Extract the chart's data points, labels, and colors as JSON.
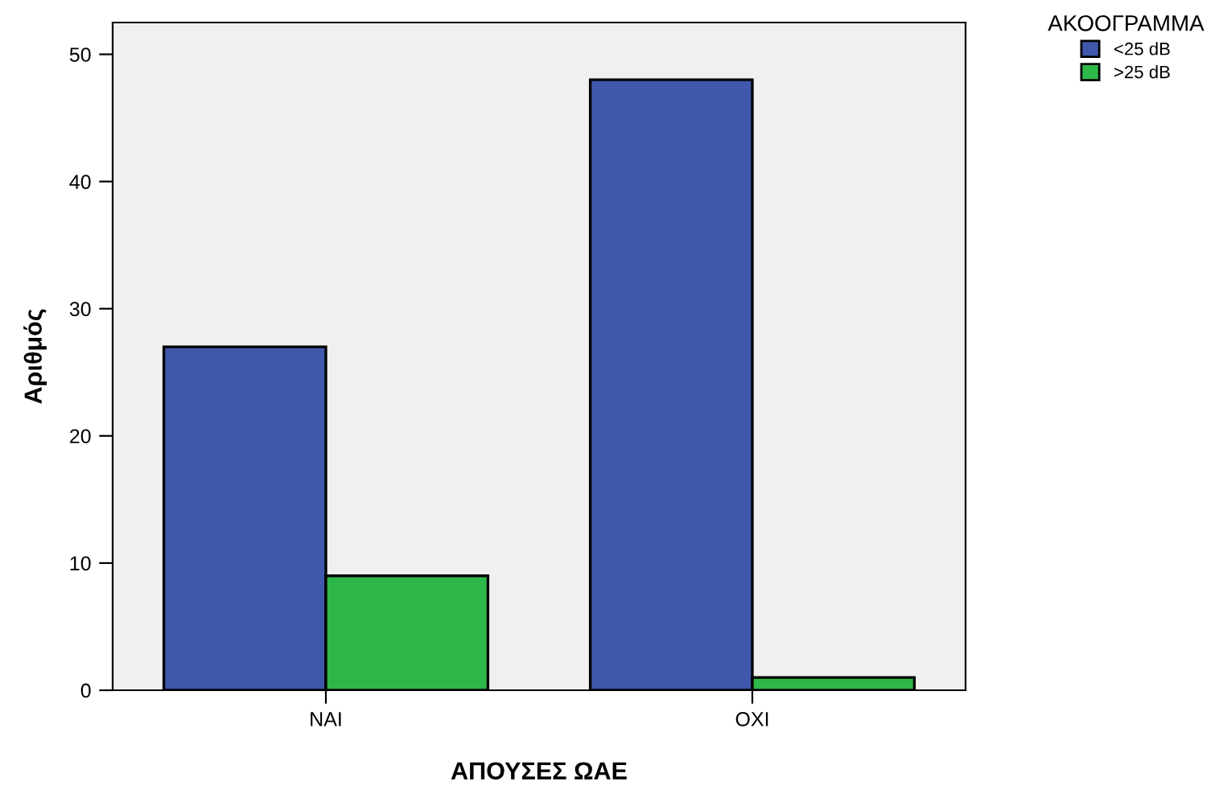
{
  "chart_data": {
    "type": "bar",
    "xlabel": "ΑΠΟΥΣΕΣ ΩΑΕ",
    "ylabel": "Αριθμός",
    "legend_title": "ΑΚΟΟΓΡΑΜΜΑ",
    "categories": [
      "ΝΑΙ",
      "ΟΧΙ"
    ],
    "series": [
      {
        "name": "<25 dB",
        "color": "#3f58ab",
        "values": [
          27,
          48
        ]
      },
      {
        "name": ">25 dB",
        "color": "#2fb84a",
        "values": [
          9,
          1
        ]
      }
    ],
    "ylim": [
      0,
      52.5
    ],
    "yticks": [
      0,
      10,
      20,
      30,
      40,
      50
    ],
    "grid": false,
    "legend": "top right"
  }
}
